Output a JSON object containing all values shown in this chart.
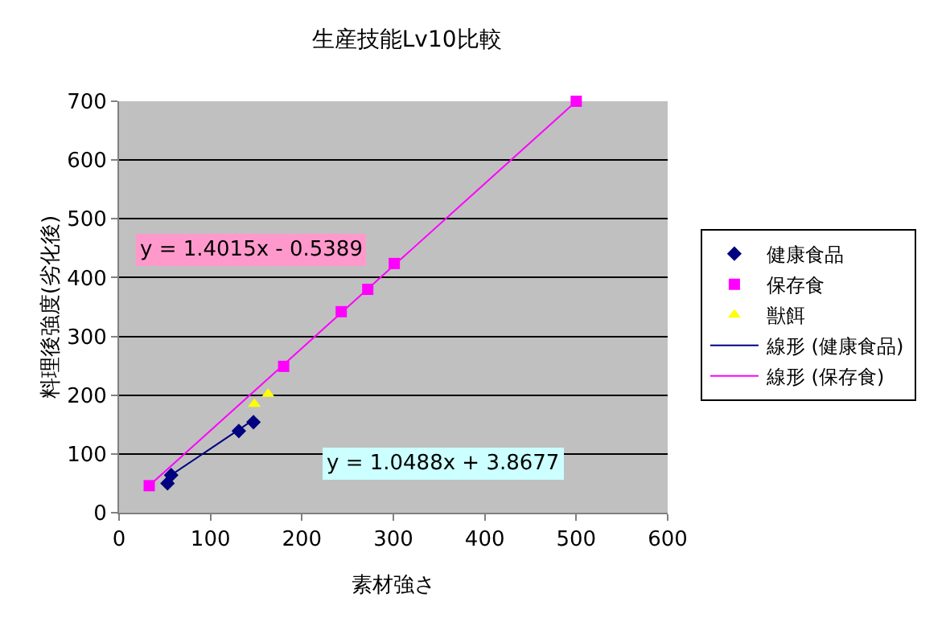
{
  "chart_data": {
    "type": "scatter",
    "title": "生産技能Lv10比較",
    "xlabel": "素材強さ",
    "ylabel": "料理後強度(劣化後)",
    "xlim": [
      0,
      600
    ],
    "xticks": [
      0,
      100,
      200,
      300,
      400,
      500,
      600
    ],
    "ylim": [
      0,
      700
    ],
    "yticks": [
      0,
      100,
      200,
      300,
      400,
      500,
      600,
      700
    ],
    "grid": "y",
    "legend": "right",
    "series": [
      {
        "name": "健康食品",
        "color": "#000080",
        "marker": "diamond",
        "x": [
          53,
          57,
          131,
          147
        ],
        "values": [
          50,
          64,
          139,
          154
        ]
      },
      {
        "name": "保存食",
        "color": "#ff00ff",
        "marker": "square",
        "x": [
          33,
          180,
          243,
          272,
          301,
          500
        ],
        "values": [
          46,
          249,
          342,
          380,
          424,
          700
        ]
      },
      {
        "name": "獣餌",
        "color": "#ffff00",
        "marker": "triangle",
        "x": [
          148,
          163
        ],
        "values": [
          185,
          202
        ]
      },
      {
        "name": "線形 (健康食品)",
        "type": "line",
        "color": "#000080",
        "marker": "none",
        "x": [
          53,
          147
        ],
        "values": [
          60,
          158
        ]
      },
      {
        "name": "線形 (保存食)",
        "type": "line",
        "color": "#ff00ff",
        "marker": "none",
        "x": [
          33,
          500
        ],
        "values": [
          46,
          700
        ]
      }
    ],
    "annotations": [
      "y = 1.4015x - 0.5389",
      "y = 1.0488x + 3.8677"
    ]
  }
}
